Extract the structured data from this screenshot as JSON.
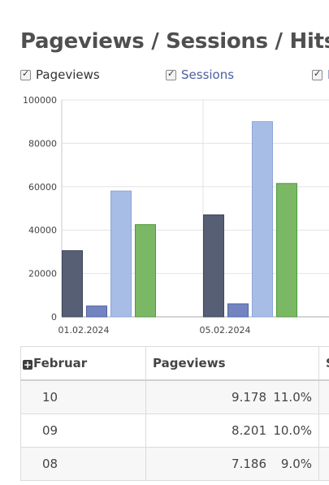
{
  "title": "Pageviews / Sessions / Hits",
  "legend": [
    {
      "label": "Pageviews",
      "checked": true,
      "color": "#333333"
    },
    {
      "label": "Sessions",
      "checked": true,
      "color": "#4a5f9e"
    },
    {
      "label": "H",
      "checked": true,
      "color": "#4a5f9e"
    }
  ],
  "chart_data": {
    "type": "bar",
    "categories": [
      "01.02.2024",
      "05.02.2024"
    ],
    "series": [
      {
        "values": [
          30500,
          47000
        ],
        "color": "#565f73"
      },
      {
        "values": [
          5000,
          6000
        ],
        "color": "#7385c0"
      },
      {
        "values": [
          58000,
          90000
        ],
        "color": "#a8bde6"
      },
      {
        "values": [
          42500,
          61500
        ],
        "color": "#7ab865"
      }
    ],
    "yticks": [
      0,
      20000,
      40000,
      60000,
      80000,
      100000
    ],
    "ylim": [
      0,
      100000
    ],
    "grid": true
  },
  "table": {
    "headers": [
      "Februar",
      "Pageviews",
      "S"
    ],
    "rows": [
      {
        "day": "10",
        "pageviews": "9.178",
        "pct": "11.0%"
      },
      {
        "day": "09",
        "pageviews": "8.201",
        "pct": "10.0%"
      },
      {
        "day": "08",
        "pageviews": "7.186",
        "pct": "9.0%"
      }
    ]
  }
}
